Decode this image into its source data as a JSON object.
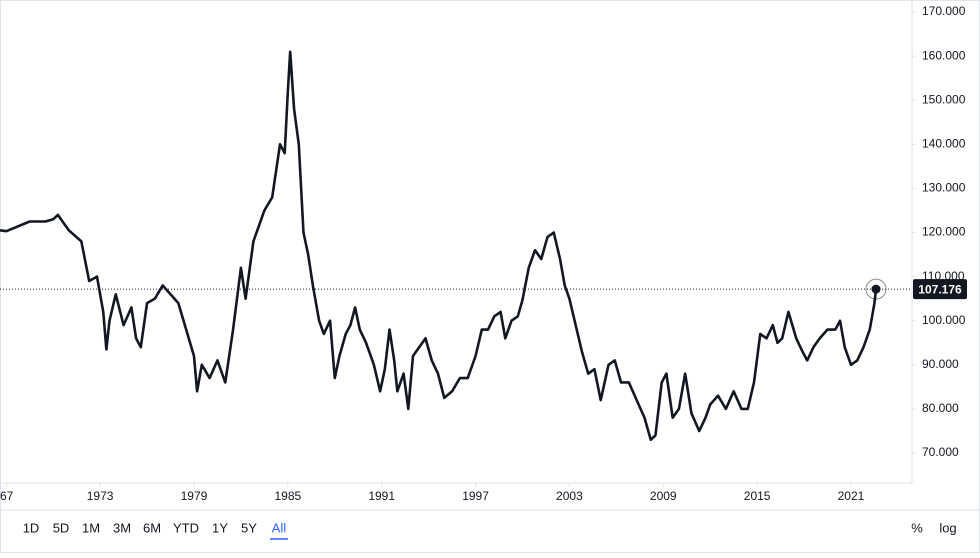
{
  "chart_data": {
    "type": "line",
    "log_scale": false,
    "grid": false,
    "xlim": [
      1966.6,
      2024.9
    ],
    "ylim": [
      63.2,
      171.6
    ],
    "xticks": [
      {
        "value": 1967,
        "label": "67"
      },
      1973,
      1979,
      1985,
      1991,
      1997,
      2003,
      2009,
      2015,
      2021
    ],
    "yticks": [
      {
        "value": 70,
        "label": "70.000"
      },
      {
        "value": 80,
        "label": "80.000"
      },
      {
        "value": 90,
        "label": "90.000"
      },
      {
        "value": 100,
        "label": "100.000"
      },
      {
        "value": 110,
        "label": "110.000"
      },
      {
        "value": 120,
        "label": "120.000"
      },
      {
        "value": 130,
        "label": "130.000"
      },
      {
        "value": 140,
        "label": "140.000"
      },
      {
        "value": 150,
        "label": "150.000"
      },
      {
        "value": 160,
        "label": "160.000"
      },
      {
        "value": 170,
        "label": "170.000"
      }
    ],
    "x": [
      1966.6,
      1967,
      1968.5,
      1969.5,
      1970,
      1970.3,
      1971,
      1971.8,
      1972.3,
      1972.8,
      1973.2,
      1973.4,
      1973.6,
      1974,
      1974.5,
      1975,
      1975.3,
      1975.6,
      1976,
      1976.5,
      1977,
      1977.5,
      1978,
      1978.5,
      1979,
      1979.2,
      1979.5,
      1980,
      1980.5,
      1981,
      1981.5,
      1982,
      1982.3,
      1982.8,
      1983,
      1983.5,
      1984,
      1984.5,
      1984.8,
      1985,
      1985.15,
      1985.4,
      1985.7,
      1986,
      1986.3,
      1986.6,
      1987,
      1987.3,
      1987.7,
      1988,
      1988.3,
      1988.7,
      1989,
      1989.3,
      1989.6,
      1990,
      1990.5,
      1990.9,
      1991.2,
      1991.5,
      1991.8,
      1992,
      1992.4,
      1992.7,
      1993,
      1993.4,
      1993.8,
      1994.2,
      1994.6,
      1995,
      1995.5,
      1996,
      1996.5,
      1997,
      1997.4,
      1997.8,
      1998.2,
      1998.6,
      1998.9,
      1999.3,
      1999.7,
      2000,
      2000.4,
      2000.8,
      2001.2,
      2001.6,
      2002,
      2002.4,
      2002.7,
      2003,
      2003.4,
      2003.8,
      2004.2,
      2004.6,
      2005,
      2005.5,
      2005.9,
      2006.3,
      2006.8,
      2007.3,
      2007.8,
      2008.2,
      2008.5,
      2008.9,
      2009.2,
      2009.6,
      2010,
      2010.4,
      2010.8,
      2011.3,
      2011.7,
      2012,
      2012.5,
      2013,
      2013.5,
      2014,
      2014.4,
      2014.8,
      2015.2,
      2015.6,
      2016,
      2016.3,
      2016.6,
      2017,
      2017.5,
      2017.9,
      2018.2,
      2018.6,
      2019,
      2019.5,
      2020,
      2020.3,
      2020.6,
      2021,
      2021.4,
      2021.8,
      2022.2,
      2022.5,
      2022.6
    ],
    "series": [
      {
        "color": "#131722",
        "values": [
          120.5,
          120.3,
          122.5,
          122.5,
          123,
          124,
          120.5,
          118,
          109,
          110,
          102,
          93.5,
          100,
          106,
          99,
          103,
          96,
          94,
          104,
          105,
          108,
          106,
          104,
          98,
          92,
          84,
          90,
          87,
          91,
          86,
          98,
          112,
          105,
          118,
          120,
          125,
          128,
          140,
          138,
          152,
          161,
          148,
          140,
          120,
          115,
          108,
          100,
          97,
          100,
          87,
          92,
          97,
          99,
          103,
          98,
          95,
          90,
          84,
          89,
          98,
          91,
          84,
          88,
          80,
          92,
          94,
          96,
          91,
          88,
          82.5,
          84,
          87,
          87,
          92,
          98,
          98,
          101,
          102,
          96,
          100,
          101,
          104.7,
          112,
          116,
          114,
          119,
          120,
          114,
          108,
          105,
          99,
          93,
          88,
          89,
          82,
          90,
          91,
          86,
          86,
          82,
          78,
          73,
          74,
          86,
          88,
          78,
          80,
          88,
          79,
          75,
          78,
          81,
          83,
          80,
          84,
          80,
          80,
          86,
          97,
          96,
          99,
          95,
          96,
          102,
          96,
          93,
          91,
          94,
          96,
          98,
          98,
          100,
          94,
          90,
          91,
          94,
          98,
          104,
          107.176
        ]
      }
    ]
  },
  "toolbar": {
    "ranges": [
      "1D",
      "5D",
      "1M",
      "3M",
      "6M",
      "YTD",
      "1Y",
      "5Y",
      "All"
    ],
    "active_range": 8,
    "options": [
      "%",
      "log"
    ]
  }
}
